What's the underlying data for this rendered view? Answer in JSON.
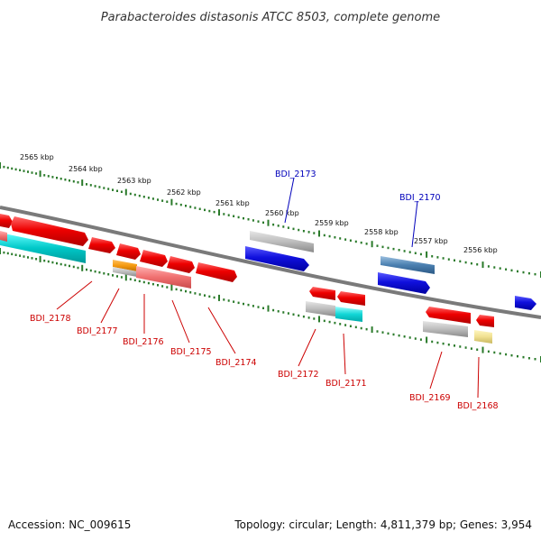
{
  "title": "Parabacteroides distasonis ATCC 8503, complete genome",
  "footer": {
    "accession": "Accession: NC_009615",
    "summary": "Topology: circular; Length: 4,811,379 bp; Genes: 3,954"
  },
  "colors": {
    "forward_gene": "#1010dd",
    "reverse_gene": "#ee0000",
    "forward_label": "#0000bb",
    "reverse_label": "#cc0000",
    "backbone": "#808080",
    "tick": "#2a7a2a"
  },
  "scale": {
    "unit": "kbp",
    "labels": [
      "2565 kbp",
      "2564 kbp",
      "2563 kbp",
      "2562 kbp",
      "2561 kbp",
      "2560 kbp",
      "2559 kbp",
      "2558 kbp",
      "2557 kbp",
      "2556 kbp"
    ]
  },
  "gene_labels": [
    {
      "id": "BDI_2178",
      "strand": "reverse"
    },
    {
      "id": "BDI_2177",
      "strand": "reverse"
    },
    {
      "id": "BDI_2176",
      "strand": "reverse"
    },
    {
      "id": "BDI_2175",
      "strand": "reverse"
    },
    {
      "id": "BDI_2174",
      "strand": "reverse"
    },
    {
      "id": "BDI_2173",
      "strand": "forward"
    },
    {
      "id": "BDI_2172",
      "strand": "reverse"
    },
    {
      "id": "BDI_2171",
      "strand": "reverse"
    },
    {
      "id": "BDI_2170",
      "strand": "forward"
    },
    {
      "id": "BDI_2169",
      "strand": "reverse"
    },
    {
      "id": "BDI_2168",
      "strand": "reverse"
    }
  ]
}
